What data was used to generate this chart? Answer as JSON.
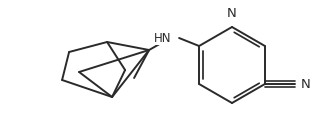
{
  "bg_color": "#ffffff",
  "line_color": "#2a2a2a",
  "line_width": 1.4,
  "font_size": 8.5,
  "font_color": "#2a2a2a",
  "CN_label": "N",
  "NH_label": "HN",
  "N_ring_label": "N",
  "figsize": [
    3.21,
    1.21
  ],
  "dpi": 100
}
